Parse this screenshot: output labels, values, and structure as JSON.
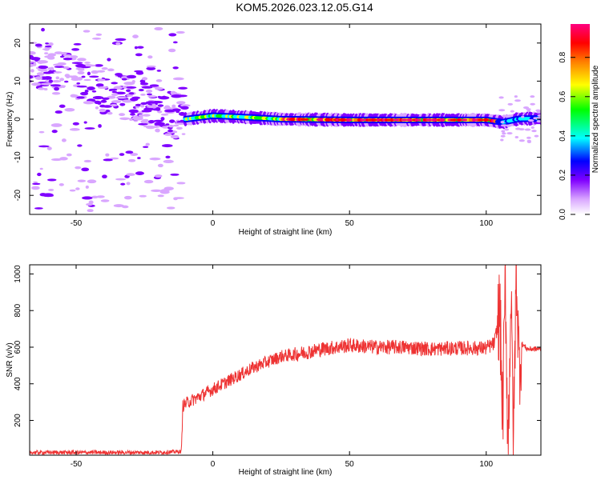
{
  "title": "KOM5.2026.023.12.05.G14",
  "chart_data": [
    {
      "type": "heatmap",
      "xlabel": "Height of straight line (km)",
      "ylabel": "Frequency (Hz)",
      "xlim": [
        -67,
        120
      ],
      "ylim": [
        -25,
        25
      ],
      "xticks": [
        -50,
        0,
        50,
        100
      ],
      "yticks": [
        -20,
        -10,
        0,
        10,
        20
      ],
      "grid": false,
      "colorbar": {
        "label": "Normalized spectral amplitude",
        "range": [
          0,
          0.97
        ],
        "ticks": [
          0.0,
          0.2,
          0.4,
          0.6,
          0.8
        ],
        "colors": [
          "#ffffff",
          "#d9a6ff",
          "#8000ff",
          "#0000ff",
          "#00ffff",
          "#00ff00",
          "#ffff00",
          "#ff8000",
          "#ff0000",
          "#ff0080"
        ]
      },
      "ridge": [
        {
          "x": -10,
          "f": 0.0
        },
        {
          "x": 0,
          "f": 0.9
        },
        {
          "x": 10,
          "f": 0.6
        },
        {
          "x": 25,
          "f": 0.0
        },
        {
          "x": 50,
          "f": -0.2
        },
        {
          "x": 100,
          "f": -0.2
        },
        {
          "x": 106,
          "f": -0.8
        },
        {
          "x": 112,
          "f": 0.1
        },
        {
          "x": 120,
          "f": 0.2
        }
      ]
    },
    {
      "type": "line",
      "xlabel": "Height of straight line (km)",
      "ylabel": "SNR (v/v)",
      "xlim": [
        -67,
        120
      ],
      "ylim": [
        10,
        1050
      ],
      "xticks": [
        -50,
        0,
        50,
        100
      ],
      "yticks": [
        200,
        400,
        600,
        800,
        1000
      ],
      "grid": false,
      "color": "#ee3333",
      "series": [
        {
          "x": [
            -67,
            -60,
            -50,
            -40,
            -30,
            -20,
            -11.5,
            -11,
            -9,
            -5,
            0,
            5,
            10,
            15,
            20,
            25,
            30,
            40,
            50,
            60,
            70,
            80,
            90,
            100,
            103,
            105,
            106,
            107,
            108,
            109,
            110,
            111,
            112,
            113,
            115,
            120
          ],
          "values": [
            25,
            25,
            25,
            25,
            25,
            25,
            30,
            280,
            300,
            330,
            370,
            410,
            450,
            490,
            520,
            550,
            560,
            590,
            610,
            600,
            600,
            590,
            595,
            595,
            620,
            800,
            200,
            950,
            40,
            900,
            100,
            1050,
            500,
            620,
            590,
            590
          ]
        }
      ]
    }
  ]
}
